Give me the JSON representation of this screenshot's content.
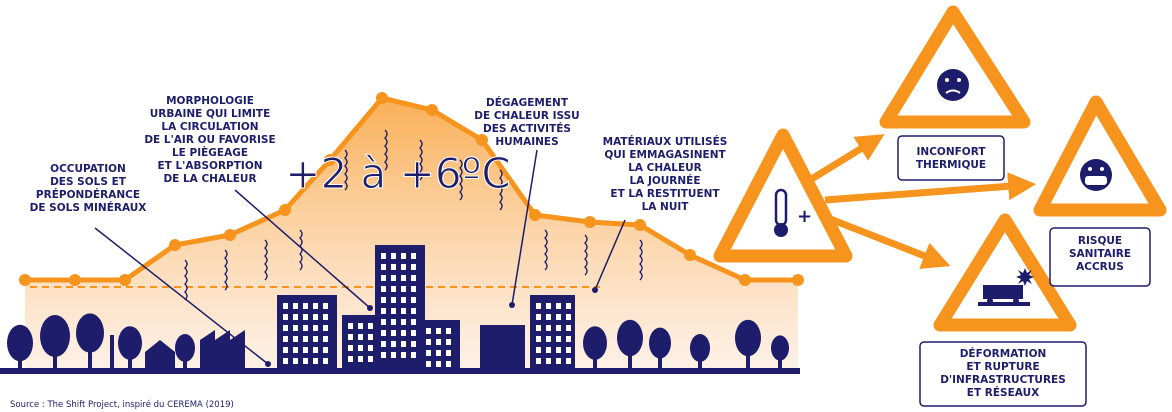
{
  "labels": {
    "occupation": [
      "OCCUPATION",
      "DES SOLS ET",
      "PRÉPONDÉRANCE",
      "DE SOLS MINÉRAUX"
    ],
    "morphologie": [
      "MORPHOLOGIE",
      "URBAINE QUI LIMITE",
      "LA CIRCULATION",
      "DE L'AIR OU FAVORISE",
      "LE PIÈGEAGE",
      "ET L'ABSORPTION",
      "DE LA CHALEUR"
    ],
    "degagement": [
      "DÉGAGEMENT",
      "DE CHALEUR ISSU",
      "DES ACTIVITÉS",
      "HUMAINES"
    ],
    "materiaux": [
      "MATÉRIAUX UTILISÉS",
      "QUI EMMAGASINENT",
      "LA CHALEUR",
      "LA JOURNÉE",
      "ET LA RESTITUENT",
      "LA NUIT"
    ]
  },
  "temperature": "+2 à +6ºC",
  "thermometer_sign": "+",
  "impacts": {
    "inconfort": [
      "INCONFORT",
      "THERMIQUE"
    ],
    "sanitaire": [
      "RISQUE",
      "SANITAIRE",
      "ACCRUS"
    ],
    "infrastructures": [
      "DÉFORMATION",
      "ET RUPTURE",
      "D'INFRASTRUCTURES",
      "ET RÉSEAUX"
    ]
  },
  "source": "Source : The Shift Project, inspiré du CEREMA (2019)"
}
